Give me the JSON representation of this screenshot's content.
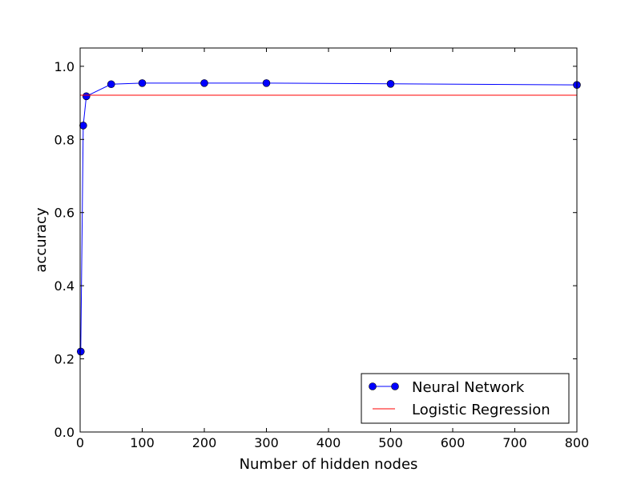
{
  "chart_data": {
    "type": "line",
    "title": "",
    "xlabel": "Number of hidden nodes",
    "ylabel": "accuracy",
    "xlim": [
      0,
      800
    ],
    "ylim": [
      0.0,
      1.05
    ],
    "xticks": [
      0,
      100,
      200,
      300,
      400,
      500,
      600,
      700,
      800
    ],
    "yticks": [
      0.0,
      0.2,
      0.4,
      0.6,
      0.8,
      1.0
    ],
    "xtick_labels": [
      "0",
      "100",
      "200",
      "300",
      "400",
      "500",
      "600",
      "700",
      "800"
    ],
    "ytick_labels": [
      "0.0",
      "0.2",
      "0.4",
      "0.6",
      "0.8",
      "1.0"
    ],
    "grid": false,
    "legend_position": "lower-right",
    "series": [
      {
        "name": "Neural Network",
        "style": "line-with-markers",
        "color": "#0000ff",
        "x": [
          1,
          5,
          10,
          50,
          100,
          200,
          300,
          500,
          800
        ],
        "y": [
          0.22,
          0.838,
          0.918,
          0.951,
          0.954,
          0.954,
          0.954,
          0.952,
          0.949
        ]
      },
      {
        "name": "Logistic Regression",
        "style": "line",
        "color": "#ff0000",
        "x": [
          0,
          800
        ],
        "y": [
          0.921,
          0.921
        ]
      }
    ]
  }
}
